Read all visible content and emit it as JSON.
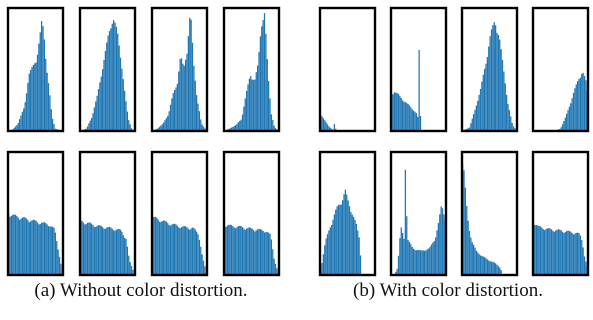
{
  "captions": {
    "a": "(a) Without color distortion.",
    "b": "(b) With color distortion."
  },
  "colors": {
    "bar": "#1f77b4",
    "frame": "#000000",
    "background": "#ffffff"
  },
  "chart_data": [
    {
      "type": "area",
      "title": "(a) Without color distortion.",
      "grid": false,
      "xlabel": "",
      "ylabel": "",
      "xlim": [
        0,
        1
      ],
      "ylim": [
        0,
        1
      ],
      "panels": [
        {
          "row": 1,
          "col": 1,
          "x": [
            0,
            0.08,
            0.18,
            0.3,
            0.38,
            0.45,
            0.52,
            0.58,
            0.62,
            0.66,
            0.7,
            0.75,
            0.8,
            0.86,
            1
          ],
          "y": [
            0,
            0.01,
            0.06,
            0.2,
            0.47,
            0.53,
            0.6,
            0.78,
            0.92,
            0.78,
            0.55,
            0.35,
            0.12,
            0.02,
            0
          ]
        },
        {
          "row": 1,
          "col": 2,
          "x": [
            0,
            0.12,
            0.22,
            0.32,
            0.42,
            0.52,
            0.6,
            0.68,
            0.76,
            0.82,
            0.88,
            0.94,
            1
          ],
          "y": [
            0,
            0.02,
            0.12,
            0.3,
            0.55,
            0.8,
            0.95,
            0.82,
            0.55,
            0.3,
            0.1,
            0.02,
            0
          ]
        },
        {
          "row": 1,
          "col": 3,
          "x": [
            0,
            0.1,
            0.2,
            0.3,
            0.38,
            0.46,
            0.52,
            0.58,
            0.64,
            0.7,
            0.76,
            0.82,
            0.9,
            1
          ],
          "y": [
            0,
            0.02,
            0.06,
            0.14,
            0.3,
            0.4,
            0.62,
            0.52,
            0.68,
            1.0,
            0.55,
            0.28,
            0.06,
            0
          ]
        },
        {
          "row": 1,
          "col": 4,
          "x": [
            0,
            0.1,
            0.22,
            0.32,
            0.4,
            0.48,
            0.56,
            0.62,
            0.68,
            0.74,
            0.8,
            0.86,
            0.92,
            1
          ],
          "y": [
            0,
            0.02,
            0.05,
            0.1,
            0.3,
            0.47,
            0.42,
            0.55,
            0.9,
            0.98,
            0.48,
            0.15,
            0.03,
            0
          ]
        },
        {
          "row": 2,
          "col": 1,
          "x": [
            0,
            0.06,
            0.3,
            0.55,
            0.75,
            0.85,
            0.92,
            1
          ],
          "y": [
            0.52,
            0.5,
            0.47,
            0.44,
            0.42,
            0.38,
            0.2,
            0
          ]
        },
        {
          "row": 2,
          "col": 2,
          "x": [
            0,
            0.08,
            0.3,
            0.55,
            0.75,
            0.84,
            0.9,
            1
          ],
          "y": [
            0.45,
            0.44,
            0.41,
            0.39,
            0.37,
            0.3,
            0.12,
            0
          ]
        },
        {
          "row": 2,
          "col": 3,
          "x": [
            0,
            0.08,
            0.3,
            0.55,
            0.75,
            0.85,
            0.92,
            1
          ],
          "y": [
            0.48,
            0.47,
            0.43,
            0.4,
            0.39,
            0.34,
            0.15,
            0
          ]
        },
        {
          "row": 2,
          "col": 4,
          "x": [
            0,
            0.1,
            0.3,
            0.55,
            0.75,
            0.85,
            0.92,
            1
          ],
          "y": [
            0.42,
            0.41,
            0.4,
            0.38,
            0.37,
            0.33,
            0.12,
            0
          ]
        }
      ]
    },
    {
      "type": "area",
      "title": "(b) With color distortion.",
      "grid": false,
      "xlabel": "",
      "ylabel": "",
      "xlim": [
        0,
        1
      ],
      "ylim": [
        0,
        1
      ],
      "panels": [
        {
          "row": 1,
          "col": 1,
          "x": [
            0,
            0.04,
            0.1,
            0.18,
            0.24,
            0.26,
            0.3,
            1
          ],
          "y": [
            0.14,
            0.12,
            0.08,
            0.03,
            0.01,
            0.06,
            0,
            0
          ]
        },
        {
          "row": 1,
          "col": 2,
          "x": [
            0,
            0.06,
            0.14,
            0.24,
            0.36,
            0.46,
            0.5,
            0.52,
            0.54,
            0.62,
            1
          ],
          "y": [
            0.3,
            0.33,
            0.3,
            0.25,
            0.2,
            0.15,
            0.1,
            1.0,
            0,
            0,
            0
          ]
        },
        {
          "row": 1,
          "col": 3,
          "x": [
            0,
            0.14,
            0.24,
            0.34,
            0.44,
            0.52,
            0.6,
            0.68,
            0.76,
            0.84,
            0.92,
            1
          ],
          "y": [
            0,
            0.03,
            0.18,
            0.35,
            0.58,
            0.8,
            0.92,
            0.78,
            0.5,
            0.22,
            0.05,
            0
          ]
        },
        {
          "row": 1,
          "col": 4,
          "x": [
            0,
            0.4,
            0.5,
            0.58,
            0.66,
            0.74,
            0.82,
            0.9,
            0.96,
            1
          ],
          "y": [
            0,
            0,
            0.02,
            0.1,
            0.2,
            0.32,
            0.42,
            0.5,
            0.42,
            0.3
          ]
        },
        {
          "row": 2,
          "col": 1,
          "x": [
            0,
            0.1,
            0.2,
            0.3,
            0.4,
            0.46,
            0.52,
            0.6,
            0.66,
            0.72,
            0.76,
            1
          ],
          "y": [
            0,
            0.28,
            0.42,
            0.55,
            0.62,
            0.7,
            0.6,
            0.5,
            0.42,
            0.3,
            0,
            0
          ]
        },
        {
          "row": 2,
          "col": 2,
          "x": [
            0,
            0.06,
            0.12,
            0.18,
            0.24,
            0.26,
            0.3,
            0.4,
            0.55,
            0.7,
            0.8,
            0.86,
            0.92,
            0.96,
            1
          ],
          "y": [
            0,
            0,
            0.06,
            0.4,
            0.3,
            0.95,
            0.3,
            0.22,
            0.2,
            0.22,
            0.3,
            0.42,
            0.58,
            0.52,
            0.45
          ]
        },
        {
          "row": 2,
          "col": 3,
          "x": [
            0,
            0.04,
            0.08,
            0.12,
            0.18,
            0.26,
            0.36,
            0.46,
            0.6,
            0.7,
            0.74,
            1
          ],
          "y": [
            0.95,
            0.85,
            0.6,
            0.42,
            0.28,
            0.2,
            0.16,
            0.13,
            0.1,
            0.06,
            0,
            0
          ]
        },
        {
          "row": 2,
          "col": 4,
          "x": [
            0,
            0.1,
            0.3,
            0.5,
            0.65,
            0.78,
            0.85,
            0.9,
            0.94,
            1
          ],
          "y": [
            0.45,
            0.4,
            0.38,
            0.37,
            0.36,
            0.35,
            0.34,
            0.28,
            0.15,
            0.05
          ]
        }
      ]
    }
  ]
}
